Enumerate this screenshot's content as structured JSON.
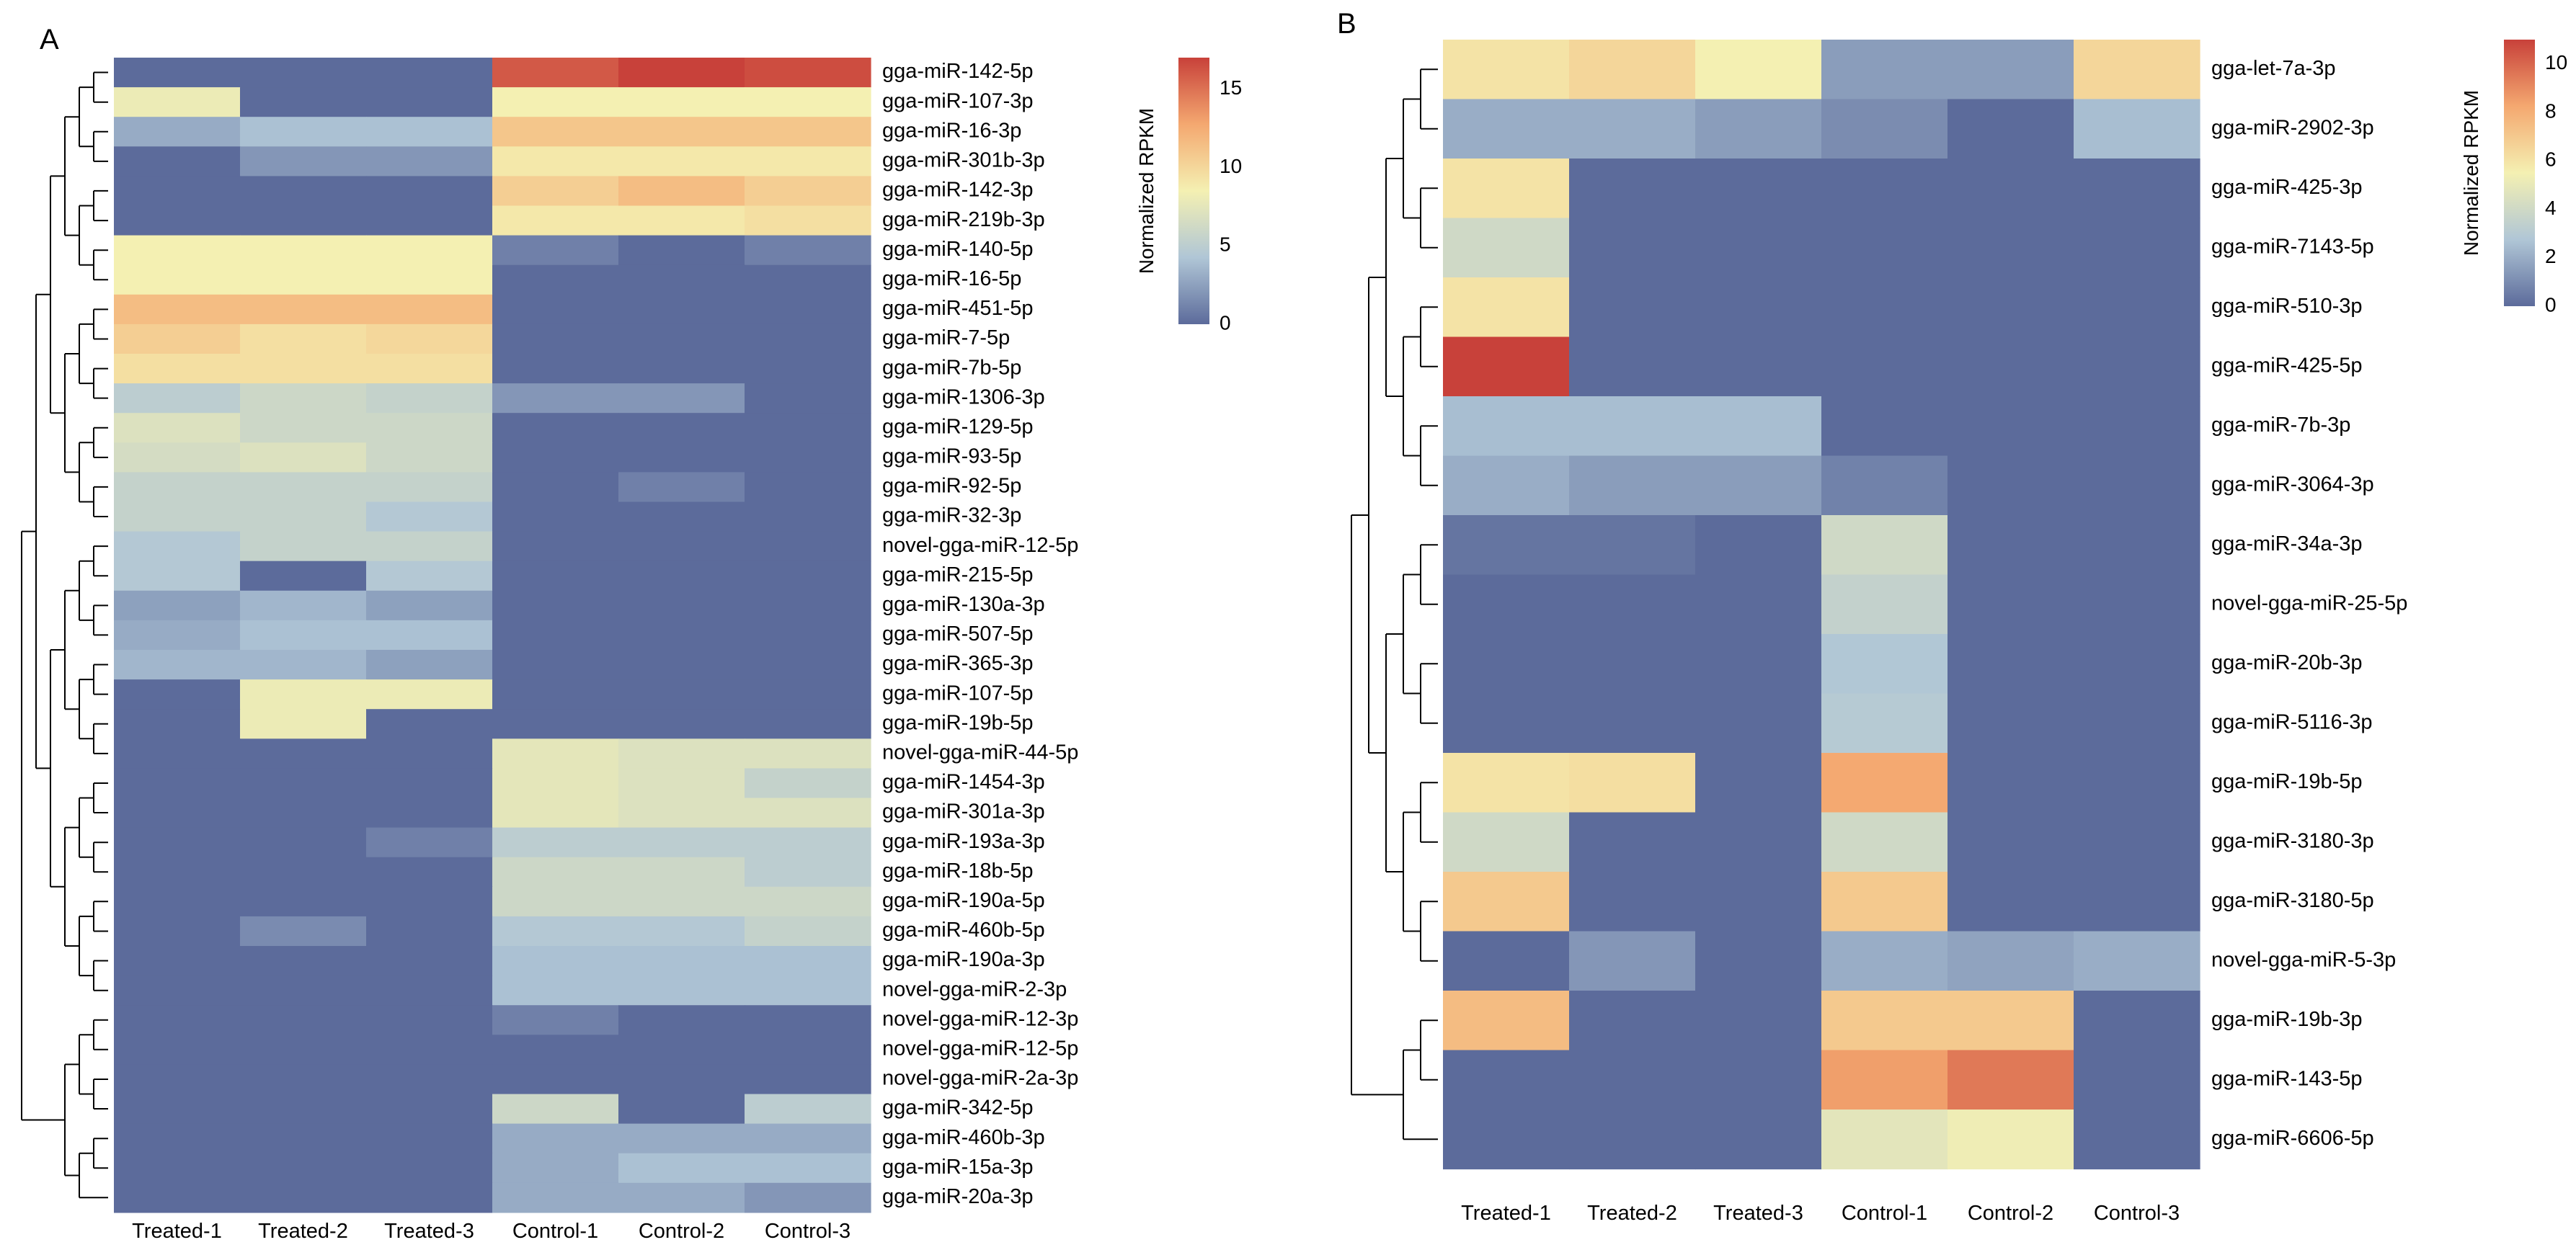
{
  "chart_data": [
    {
      "type": "heatmap",
      "panel": "A",
      "colorbar": {
        "title": "Normalized RPKM",
        "ticks": [
          0,
          5,
          10,
          15
        ],
        "range": [
          0,
          17
        ]
      },
      "columns": [
        "Treated-1",
        "Treated-2",
        "Treated-3",
        "Control-1",
        "Control-2",
        "Control-3"
      ],
      "rows": [
        {
          "label": "gga-miR-142-5p",
          "values": [
            0,
            0,
            0,
            16,
            17,
            16.5
          ]
        },
        {
          "label": "gga-miR-107-3p",
          "values": [
            8,
            0,
            0,
            8.5,
            8.5,
            8.5
          ]
        },
        {
          "label": "gga-miR-16-3p",
          "values": [
            3,
            4,
            4,
            11,
            11,
            11
          ]
        },
        {
          "label": "gga-miR-301b-3p",
          "values": [
            0,
            2,
            2,
            9,
            9,
            9
          ]
        },
        {
          "label": "gga-miR-142-3p",
          "values": [
            0,
            0,
            0,
            10.5,
            11.5,
            10.5
          ]
        },
        {
          "label": "gga-miR-219b-3p",
          "values": [
            0,
            0,
            0,
            9,
            9,
            9.5
          ]
        },
        {
          "label": "gga-miR-140-5p",
          "values": [
            8.5,
            8.5,
            8.5,
            1,
            0,
            1
          ]
        },
        {
          "label": "gga-miR-16-5p",
          "values": [
            8.5,
            8.5,
            8.5,
            0,
            0,
            0
          ]
        },
        {
          "label": "gga-miR-451-5p",
          "values": [
            11.5,
            11.5,
            11.5,
            0,
            0,
            0
          ]
        },
        {
          "label": "gga-miR-7-5p",
          "values": [
            10.5,
            9.5,
            10,
            0,
            0,
            0
          ]
        },
        {
          "label": "gga-miR-7b-5p",
          "values": [
            9.5,
            9.5,
            9.5,
            0,
            0,
            0
          ]
        },
        {
          "label": "gga-miR-1306-3p",
          "values": [
            5,
            6,
            5.5,
            2,
            2,
            0
          ]
        },
        {
          "label": "gga-miR-129-5p",
          "values": [
            7,
            6,
            6,
            0,
            0,
            0
          ]
        },
        {
          "label": "gga-miR-93-5p",
          "values": [
            6.5,
            7,
            6,
            0,
            0,
            0
          ]
        },
        {
          "label": "gga-miR-92-5p",
          "values": [
            5.5,
            5.5,
            5.5,
            0,
            1,
            0
          ]
        },
        {
          "label": "gga-miR-32-3p",
          "values": [
            5.5,
            5.5,
            4.5,
            0,
            0,
            0
          ]
        },
        {
          "label": "novel-gga-miR-12-5p",
          "values": [
            4.5,
            5.5,
            5.5,
            0,
            0,
            0
          ]
        },
        {
          "label": "gga-miR-215-5p",
          "values": [
            4.5,
            0,
            4.5,
            0,
            0,
            0
          ]
        },
        {
          "label": "gga-miR-130a-3p",
          "values": [
            2.5,
            3.5,
            2.5,
            0,
            0,
            0
          ]
        },
        {
          "label": "gga-miR-507-5p",
          "values": [
            3,
            4,
            4,
            0,
            0,
            0
          ]
        },
        {
          "label": "gga-miR-365-3p",
          "values": [
            3.5,
            3.5,
            2.5,
            0,
            0,
            0
          ]
        },
        {
          "label": "gga-miR-107-5p",
          "values": [
            0,
            8,
            8,
            0,
            0,
            0
          ]
        },
        {
          "label": "gga-miR-19b-5p",
          "values": [
            0,
            8,
            0,
            0,
            0,
            0
          ]
        },
        {
          "label": "novel-gga-miR-44-5p",
          "values": [
            0,
            0,
            0,
            7.5,
            7,
            7
          ]
        },
        {
          "label": "gga-miR-1454-3p",
          "values": [
            0,
            0,
            0,
            7.5,
            7,
            5.5
          ]
        },
        {
          "label": "gga-miR-301a-3p",
          "values": [
            0,
            0,
            0,
            7.5,
            7,
            7
          ]
        },
        {
          "label": "gga-miR-193a-3p",
          "values": [
            0,
            0,
            1,
            5,
            5,
            5
          ]
        },
        {
          "label": "gga-miR-18b-5p",
          "values": [
            0,
            0,
            0,
            6,
            6,
            5
          ]
        },
        {
          "label": "gga-miR-190a-5p",
          "values": [
            0,
            0,
            0,
            6,
            6,
            6
          ]
        },
        {
          "label": "gga-miR-460b-5p",
          "values": [
            0,
            1.5,
            0,
            4.5,
            4.5,
            5.5
          ]
        },
        {
          "label": "gga-miR-190a-3p",
          "values": [
            0,
            0,
            0,
            4,
            4,
            4
          ]
        },
        {
          "label": "novel-gga-miR-2-3p",
          "values": [
            0,
            0,
            0,
            4,
            4,
            4
          ]
        },
        {
          "label": "novel-gga-miR-12-3p",
          "values": [
            0,
            0,
            0,
            1,
            0,
            0
          ]
        },
        {
          "label": "novel-gga-miR-12-5p",
          "values": [
            0,
            0,
            0,
            0,
            0,
            0
          ]
        },
        {
          "label": "novel-gga-miR-2a-3p",
          "values": [
            0,
            0,
            0,
            0,
            0,
            0
          ]
        },
        {
          "label": "gga-miR-342-5p",
          "values": [
            0,
            0,
            0,
            6,
            0,
            5
          ]
        },
        {
          "label": "gga-miR-460b-3p",
          "values": [
            0,
            0,
            0,
            3,
            3,
            3
          ]
        },
        {
          "label": "gga-miR-15a-3p",
          "values": [
            0,
            0,
            0,
            3,
            4,
            4
          ]
        },
        {
          "label": "gga-miR-20a-3p",
          "values": [
            0,
            0,
            0,
            3,
            3,
            2
          ]
        }
      ]
    },
    {
      "type": "heatmap",
      "panel": "B",
      "colorbar": {
        "title": "Normalized RPKM",
        "ticks": [
          0,
          2,
          4,
          6,
          8,
          10
        ],
        "range": [
          0,
          11
        ]
      },
      "columns": [
        "Treated-1",
        "Treated-2",
        "Treated-3",
        "Control-1",
        "Control-2",
        "Control-3"
      ],
      "rows": [
        {
          "label": "gga-let-7a-3p",
          "values": [
            6,
            6.5,
            5.5,
            1.5,
            1.5,
            6.5
          ]
        },
        {
          "label": "gga-miR-2902-3p",
          "values": [
            2,
            2,
            1.5,
            1,
            0,
            2.5
          ]
        },
        {
          "label": "gga-miR-425-3p",
          "values": [
            6,
            0,
            0,
            0,
            0,
            0
          ]
        },
        {
          "label": "gga-miR-7143-5p",
          "values": [
            4,
            0,
            0,
            0,
            0,
            0
          ]
        },
        {
          "label": "gga-miR-510-3p",
          "values": [
            6,
            0,
            0,
            0,
            0,
            0
          ]
        },
        {
          "label": "gga-miR-425-5p",
          "values": [
            11,
            0,
            0,
            0,
            0,
            0
          ]
        },
        {
          "label": "gga-miR-7b-3p",
          "values": [
            2.5,
            2.5,
            2.5,
            0,
            0,
            0
          ]
        },
        {
          "label": "gga-miR-3064-3p",
          "values": [
            2,
            1.5,
            1.5,
            0.7,
            0,
            0
          ]
        },
        {
          "label": "gga-miR-34a-3p",
          "values": [
            0.3,
            0.3,
            0,
            4,
            0,
            0
          ]
        },
        {
          "label": "novel-gga-miR-25-5p",
          "values": [
            0,
            0,
            0,
            3.5,
            0,
            0
          ]
        },
        {
          "label": "gga-miR-20b-3p",
          "values": [
            0,
            0,
            0,
            2.8,
            0,
            0
          ]
        },
        {
          "label": "gga-miR-5116-3p",
          "values": [
            0,
            0,
            0,
            3,
            0,
            0
          ]
        },
        {
          "label": "gga-miR-19b-5p",
          "values": [
            6,
            6.2,
            0,
            8.2,
            0,
            0
          ]
        },
        {
          "label": "gga-miR-3180-3p",
          "values": [
            4,
            0,
            0,
            4,
            0,
            0
          ]
        },
        {
          "label": "gga-miR-3180-5p",
          "values": [
            7,
            0,
            0,
            7,
            0,
            0
          ]
        },
        {
          "label": "novel-gga-miR-5-3p",
          "values": [
            0,
            1.3,
            0,
            2,
            1.7,
            2
          ]
        },
        {
          "label": "gga-miR-19b-3p",
          "values": [
            7.5,
            0,
            0,
            7,
            7,
            0
          ]
        },
        {
          "label": "gga-miR-143-5p",
          "values": [
            0,
            0,
            0,
            8.5,
            9.5,
            0
          ]
        },
        {
          "label": "gga-miR-6606-5p",
          "values": [
            0,
            0,
            0,
            4.8,
            5.3,
            0
          ]
        }
      ]
    }
  ]
}
